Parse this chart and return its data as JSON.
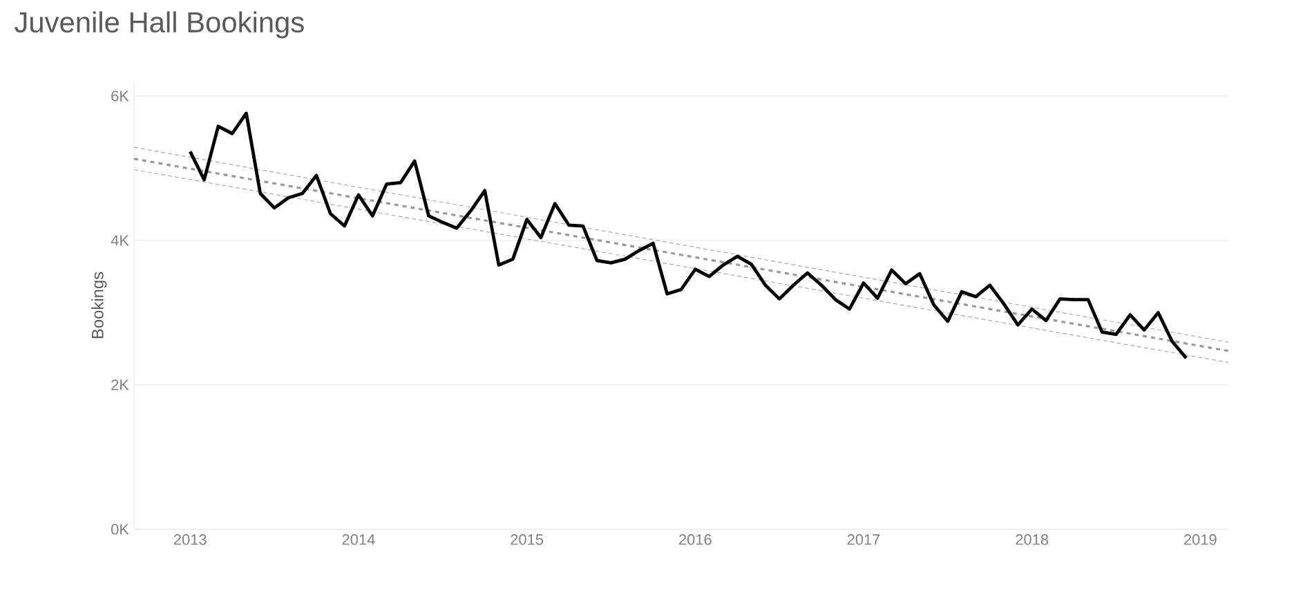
{
  "chart_data": {
    "type": "line",
    "title": "Juvenile Hall Bookings",
    "ylabel": "Bookings",
    "x": [
      "2013-01",
      "2013-02",
      "2013-03",
      "2013-04",
      "2013-05",
      "2013-06",
      "2013-07",
      "2013-08",
      "2013-09",
      "2013-10",
      "2013-11",
      "2013-12",
      "2014-01",
      "2014-02",
      "2014-03",
      "2014-04",
      "2014-05",
      "2014-06",
      "2014-07",
      "2014-08",
      "2014-09",
      "2014-10",
      "2014-11",
      "2014-12",
      "2015-01",
      "2015-02",
      "2015-03",
      "2015-04",
      "2015-05",
      "2015-06",
      "2015-07",
      "2015-08",
      "2015-09",
      "2015-10",
      "2015-11",
      "2015-12",
      "2016-01",
      "2016-02",
      "2016-03",
      "2016-04",
      "2016-05",
      "2016-06",
      "2016-07",
      "2016-08",
      "2016-09",
      "2016-10",
      "2016-11",
      "2016-12",
      "2017-01",
      "2017-02",
      "2017-03",
      "2017-04",
      "2017-05",
      "2017-06",
      "2017-07",
      "2017-08",
      "2017-09",
      "2017-10",
      "2017-11",
      "2017-12",
      "2018-01",
      "2018-02",
      "2018-03",
      "2018-04",
      "2018-05",
      "2018-06",
      "2018-07",
      "2018-08",
      "2018-09",
      "2018-10",
      "2018-11",
      "2018-12"
    ],
    "series": [
      {
        "color": "#000000",
        "line_style": "solid",
        "values": [
          5230,
          4840,
          5580,
          5480,
          5760,
          4650,
          4450,
          4590,
          4650,
          4900,
          4370,
          4200,
          4630,
          4340,
          4780,
          4800,
          5100,
          4340,
          4250,
          4170,
          4410,
          4690,
          3660,
          3740,
          4290,
          4040,
          4510,
          4210,
          4200,
          3720,
          3690,
          3740,
          3860,
          3960,
          3260,
          3320,
          3600,
          3500,
          3660,
          3780,
          3670,
          3380,
          3190,
          3380,
          3550,
          3380,
          3180,
          3050,
          3410,
          3200,
          3590,
          3400,
          3540,
          3110,
          2880,
          3290,
          3220,
          3380,
          3120,
          2830,
          3050,
          2890,
          3190,
          3180,
          3180,
          2730,
          2700,
          2970,
          2760,
          3000,
          2600,
          2370
        ]
      },
      {
        "type": "line",
        "color": "#999999",
        "line_style": "dashed",
        "x": [
          "2012-09",
          "2019-03"
        ],
        "values": [
          5130,
          2470
        ]
      },
      {
        "type": "line",
        "color": "#aaaaaa",
        "line_style": "dotted",
        "x": [
          "2012-09",
          "2019-03"
        ],
        "values": [
          5290,
          2590
        ]
      },
      {
        "type": "line",
        "color": "#aaaaaa",
        "line_style": "dotted",
        "x": [
          "2012-09",
          "2019-03"
        ],
        "values": [
          4980,
          2310
        ]
      }
    ],
    "xlim": [
      "2012-09",
      "2019-03"
    ],
    "xticks": [
      "2013",
      "2014",
      "2015",
      "2016",
      "2017",
      "2018",
      "2019"
    ],
    "ylim": [
      0,
      6200
    ],
    "yticks": [
      {
        "value": 0,
        "label": "0K"
      },
      {
        "value": 2000,
        "label": "2K"
      },
      {
        "value": 4000,
        "label": "4K"
      },
      {
        "value": 6000,
        "label": "6K"
      }
    ],
    "grid": "y",
    "marker": "none"
  }
}
